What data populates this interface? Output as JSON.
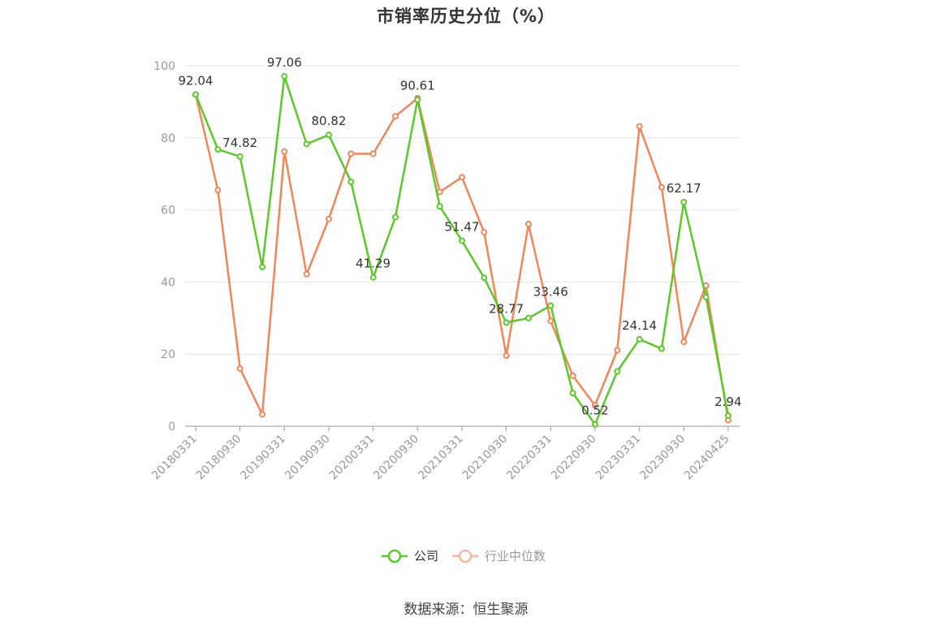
{
  "title": "市销率历史分位（%）",
  "source": "数据来源：恒生聚源",
  "colors": {
    "company": "#5cc82a",
    "industry": "#f0875a",
    "grid": "#e6e6e6",
    "axis": "#999999"
  },
  "chart_data": {
    "type": "line",
    "title": "市销率历史分位（%）",
    "xlabel": "",
    "ylabel": "",
    "ylim": [
      0,
      100
    ],
    "yticks": [
      0,
      20,
      40,
      60,
      80,
      100
    ],
    "grid": true,
    "legend_position": "bottom",
    "x": [
      "20180331",
      "20180630",
      "20180930",
      "20181231",
      "20190331",
      "20190630",
      "20190930",
      "20191231",
      "20200331",
      "20200630",
      "20200930",
      "20201231",
      "20210331",
      "20210630",
      "20210930",
      "20211231",
      "20220331",
      "20220630",
      "20220930",
      "20221231",
      "20230331",
      "20230630",
      "20230930",
      "20231231",
      "20240425"
    ],
    "xtick_labels": [
      "20180331",
      "20180930",
      "20190331",
      "20190930",
      "20200331",
      "20200930",
      "20210331",
      "20210930",
      "20220331",
      "20220930",
      "20230331",
      "20230930",
      "20240425"
    ],
    "series": [
      {
        "name": "公司",
        "color": "#5cc82a",
        "values": [
          92.04,
          76.8,
          74.82,
          44.2,
          97.06,
          78.3,
          80.82,
          67.8,
          41.29,
          58.0,
          90.61,
          61.0,
          51.47,
          41.2,
          28.77,
          30.0,
          33.46,
          9.2,
          0.52,
          15.2,
          24.14,
          21.5,
          62.17,
          35.8,
          2.94
        ],
        "labels": [
          "92.04",
          null,
          "74.82",
          null,
          "97.06",
          null,
          "80.82",
          null,
          "41.29",
          null,
          "90.61",
          null,
          "51.47",
          null,
          "28.77",
          null,
          "33.46",
          null,
          "0.52",
          null,
          "24.14",
          null,
          "62.17",
          null,
          "2.94"
        ]
      },
      {
        "name": "行业中位数",
        "color": "#f0875a",
        "values": [
          92.0,
          65.5,
          16.0,
          3.3,
          76.2,
          42.2,
          57.5,
          75.6,
          75.6,
          86.0,
          91.0,
          65.0,
          69.1,
          53.8,
          19.6,
          56.1,
          29.2,
          14.0,
          5.8,
          21.1,
          83.2,
          66.3,
          23.4,
          39.0,
          1.7
        ]
      }
    ]
  },
  "legend": [
    {
      "label": "公司",
      "color": "#5cc82a",
      "active": true
    },
    {
      "label": "行业中位数",
      "color": "#f0875a",
      "active": false
    }
  ]
}
